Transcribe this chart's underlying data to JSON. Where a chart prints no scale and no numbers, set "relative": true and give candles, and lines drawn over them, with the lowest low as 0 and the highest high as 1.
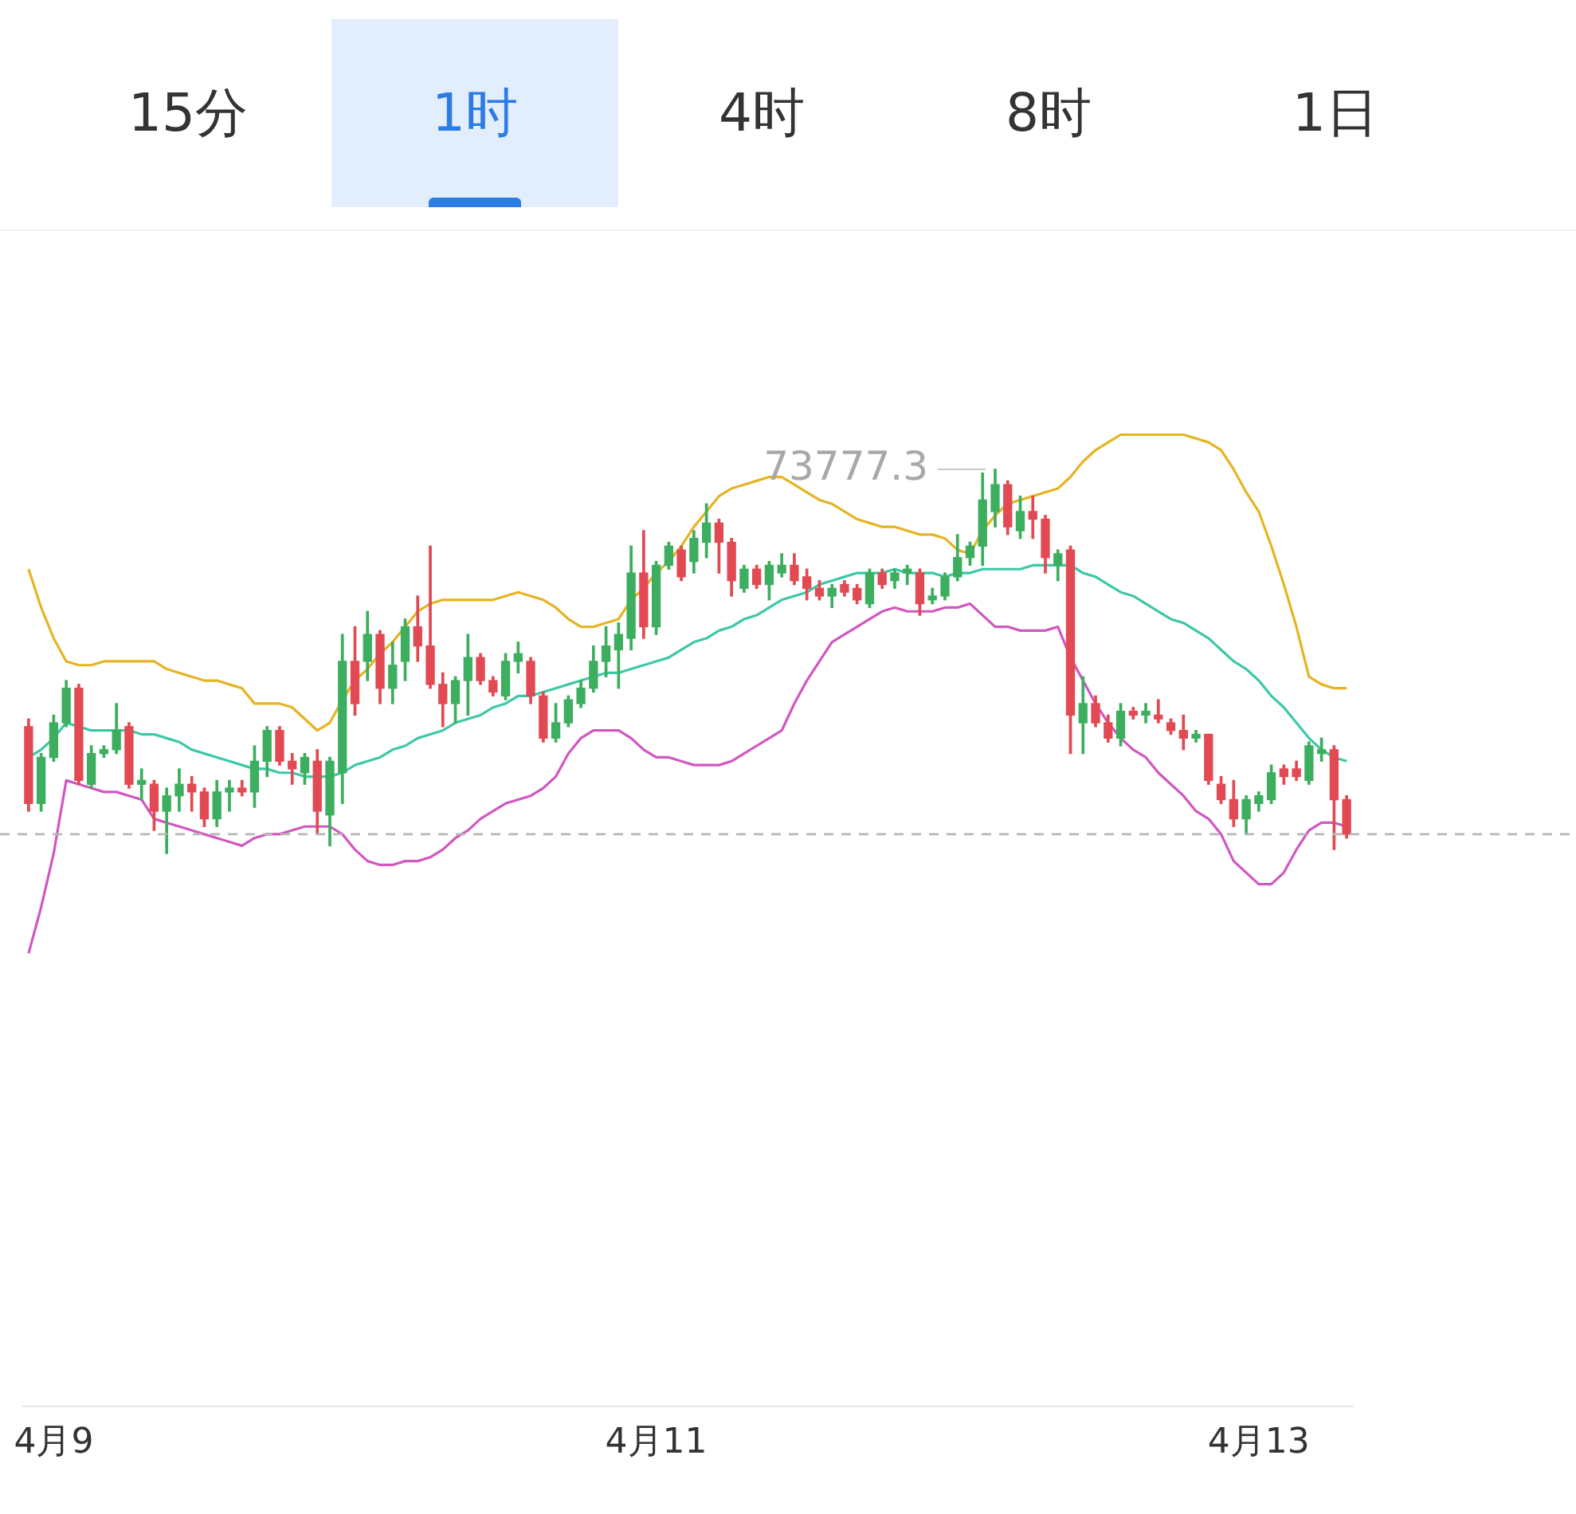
{
  "chart_data": {
    "type": "candlestick",
    "relative": true,
    "tick_labels": "x",
    "annotations": [
      "15分",
      "1时",
      "4时",
      "8时",
      "1日",
      "73777.3"
    ],
    "categories": [
      null,
      null,
      "4月9",
      null,
      null,
      null,
      null,
      null,
      null,
      null,
      null,
      null,
      null,
      null,
      null,
      null,
      null,
      null,
      null,
      null,
      null,
      null,
      null,
      null,
      null,
      null,
      null,
      null,
      null,
      null,
      null,
      null,
      null,
      null,
      null,
      null,
      null,
      null,
      null,
      null,
      null,
      null,
      null,
      null,
      null,
      null,
      null,
      null,
      null,
      null,
      "4月11",
      null,
      null,
      null,
      null,
      null,
      null,
      null,
      null,
      null,
      null,
      null,
      null,
      null,
      null,
      null,
      null,
      null,
      null,
      null,
      null,
      null,
      null,
      null,
      null,
      null,
      null,
      null,
      null,
      null,
      null,
      null,
      null,
      null,
      null,
      null,
      null,
      null,
      null,
      null,
      null,
      null,
      null,
      null,
      null,
      null,
      null,
      null,
      "4月13",
      null,
      null,
      null,
      null,
      null,
      null,
      null
    ],
    "ohlc": [
      [
        0.33,
        0.35,
        0.11,
        0.13
      ],
      [
        0.13,
        0.26,
        0.11,
        0.25
      ],
      [
        0.25,
        0.36,
        0.24,
        0.34
      ],
      [
        0.34,
        0.45,
        0.33,
        0.43
      ],
      [
        0.43,
        0.44,
        0.18,
        0.19
      ],
      [
        0.18,
        0.28,
        0.17,
        0.26
      ],
      [
        0.26,
        0.28,
        0.25,
        0.27
      ],
      [
        0.27,
        0.39,
        0.26,
        0.32
      ],
      [
        0.33,
        0.34,
        0.17,
        0.18
      ],
      [
        0.18,
        0.22,
        0.14,
        0.19
      ],
      [
        0.18,
        0.19,
        0.06,
        0.11
      ],
      [
        0.11,
        0.17,
        0,
        0.15
      ],
      [
        0.15,
        0.22,
        0.11,
        0.18
      ],
      [
        0.18,
        0.2,
        0.11,
        0.16
      ],
      [
        0.16,
        0.17,
        0.07,
        0.09
      ],
      [
        0.09,
        0.19,
        0.07,
        0.16
      ],
      [
        0.16,
        0.19,
        0.11,
        0.17
      ],
      [
        0.17,
        0.19,
        0.15,
        0.16
      ],
      [
        0.16,
        0.28,
        0.12,
        0.24
      ],
      [
        0.24,
        0.33,
        0.2,
        0.32
      ],
      [
        0.32,
        0.33,
        0.23,
        0.24
      ],
      [
        0.24,
        0.26,
        0.18,
        0.22
      ],
      [
        0.21,
        0.26,
        0.18,
        0.25
      ],
      [
        0.24,
        0.27,
        0.05,
        0.11
      ],
      [
        0.1,
        0.25,
        0.02,
        0.24
      ],
      [
        0.21,
        0.57,
        0.13,
        0.5
      ],
      [
        0.5,
        0.59,
        0.36,
        0.39
      ],
      [
        0.5,
        0.63,
        0.45,
        0.57
      ],
      [
        0.57,
        0.58,
        0.39,
        0.43
      ],
      [
        0.43,
        0.55,
        0.39,
        0.49
      ],
      [
        0.5,
        0.61,
        0.45,
        0.59
      ],
      [
        0.59,
        0.67,
        0.5,
        0.54
      ],
      [
        0.54,
        0.8,
        0.43,
        0.44
      ],
      [
        0.44,
        0.47,
        0.33,
        0.39
      ],
      [
        0.39,
        0.46,
        0.34,
        0.45
      ],
      [
        0.45,
        0.57,
        0.36,
        0.51
      ],
      [
        0.51,
        0.52,
        0.44,
        0.45
      ],
      [
        0.45,
        0.46,
        0.41,
        0.42
      ],
      [
        0.41,
        0.52,
        0.4,
        0.5
      ],
      [
        0.5,
        0.55,
        0.47,
        0.52
      ],
      [
        0.5,
        0.51,
        0.39,
        0.41
      ],
      [
        0.41,
        0.42,
        0.29,
        0.3
      ],
      [
        0.3,
        0.39,
        0.29,
        0.34
      ],
      [
        0.34,
        0.41,
        0.33,
        0.4
      ],
      [
        0.39,
        0.45,
        0.38,
        0.43
      ],
      [
        0.43,
        0.54,
        0.42,
        0.5
      ],
      [
        0.5,
        0.59,
        0.46,
        0.54
      ],
      [
        0.53,
        0.6,
        0.43,
        0.57
      ],
      [
        0.56,
        0.8,
        0.53,
        0.73
      ],
      [
        0.73,
        0.84,
        0.56,
        0.59
      ],
      [
        0.59,
        0.76,
        0.57,
        0.75
      ],
      [
        0.75,
        0.81,
        0.74,
        0.8
      ],
      [
        0.79,
        0.8,
        0.71,
        0.72
      ],
      [
        0.76,
        0.84,
        0.73,
        0.82
      ],
      [
        0.81,
        0.91,
        0.77,
        0.86
      ],
      [
        0.86,
        0.87,
        0.73,
        0.81
      ],
      [
        0.81,
        0.82,
        0.67,
        0.71
      ],
      [
        0.69,
        0.75,
        0.68,
        0.74
      ],
      [
        0.74,
        0.75,
        0.69,
        0.7
      ],
      [
        0.7,
        0.76,
        0.66,
        0.75
      ],
      [
        0.73,
        0.78,
        0.72,
        0.75
      ],
      [
        0.75,
        0.78,
        0.7,
        0.71
      ],
      [
        0.72,
        0.74,
        0.66,
        0.69
      ],
      [
        0.69,
        0.71,
        0.66,
        0.67
      ],
      [
        0.67,
        0.7,
        0.64,
        0.69
      ],
      [
        0.7,
        0.71,
        0.67,
        0.68
      ],
      [
        0.69,
        0.7,
        0.65,
        0.66
      ],
      [
        0.65,
        0.74,
        0.64,
        0.73
      ],
      [
        0.73,
        0.74,
        0.69,
        0.7
      ],
      [
        0.71,
        0.74,
        0.69,
        0.73
      ],
      [
        0.73,
        0.75,
        0.7,
        0.74
      ],
      [
        0.73,
        0.74,
        0.62,
        0.65
      ],
      [
        0.66,
        0.69,
        0.65,
        0.67
      ],
      [
        0.67,
        0.73,
        0.66,
        0.72
      ],
      [
        0.72,
        0.83,
        0.71,
        0.77
      ],
      [
        0.77,
        0.81,
        0.75,
        0.8
      ],
      [
        0.8,
        0.99,
        0.75,
        0.92
      ],
      [
        0.89,
        1,
        0.85,
        0.96
      ],
      [
        0.96,
        0.97,
        0.83,
        0.85
      ],
      [
        0.84,
        0.93,
        0.82,
        0.89
      ],
      [
        0.89,
        0.93,
        0.82,
        0.87
      ],
      [
        0.87,
        0.88,
        0.73,
        0.77
      ],
      [
        0.75,
        0.79,
        0.71,
        0.78
      ],
      [
        0.79,
        0.8,
        0.26,
        0.36
      ],
      [
        0.34,
        0.46,
        0.26,
        0.39
      ],
      [
        0.39,
        0.41,
        0.33,
        0.34
      ],
      [
        0.34,
        0.36,
        0.29,
        0.3
      ],
      [
        0.3,
        0.39,
        0.28,
        0.37
      ],
      [
        0.37,
        0.38,
        0.35,
        0.36
      ],
      [
        0.36,
        0.39,
        0.34,
        0.37
      ],
      [
        0.36,
        0.4,
        0.34,
        0.35
      ],
      [
        0.34,
        0.35,
        0.31,
        0.32
      ],
      [
        0.32,
        0.36,
        0.27,
        0.3
      ],
      [
        0.3,
        0.32,
        0.29,
        0.31
      ],
      [
        0.31,
        0.31,
        0.18,
        0.19
      ],
      [
        0.18,
        0.2,
        0.13,
        0.14
      ],
      [
        0.14,
        0.19,
        0.07,
        0.09
      ],
      [
        0.09,
        0.15,
        0.05,
        0.14
      ],
      [
        0.13,
        0.16,
        0.11,
        0.15
      ],
      [
        0.14,
        0.23,
        0.13,
        0.21
      ],
      [
        0.22,
        0.23,
        0.18,
        0.2
      ],
      [
        0.22,
        0.24,
        0.19,
        0.2
      ],
      [
        0.19,
        0.29,
        0.18,
        0.28
      ],
      [
        0.26,
        0.3,
        0.24,
        0.27
      ],
      [
        0.27,
        0.28,
        0.01,
        0.14
      ],
      [
        0.14,
        0.15,
        0.04,
        0.05
      ]
    ],
    "series": [
      {
        "type": "line",
        "color": "#e6b422",
        "values": [
          0.74,
          0.64,
          0.56,
          0.5,
          0.49,
          0.49,
          0.5,
          0.5,
          0.5,
          0.5,
          0.5,
          0.48,
          0.47,
          0.46,
          0.45,
          0.45,
          0.44,
          0.43,
          0.39,
          0.39,
          0.39,
          0.38,
          0.35,
          0.32,
          0.34,
          0.4,
          0.45,
          0.48,
          0.52,
          0.55,
          0.59,
          0.63,
          0.65,
          0.66,
          0.66,
          0.66,
          0.66,
          0.66,
          0.67,
          0.68,
          0.67,
          0.66,
          0.64,
          0.61,
          0.59,
          0.59,
          0.6,
          0.61,
          0.66,
          0.69,
          0.73,
          0.76,
          0.8,
          0.85,
          0.89,
          0.93,
          0.95,
          0.96,
          0.97,
          0.98,
          0.98,
          0.96,
          0.94,
          0.92,
          0.91,
          0.89,
          0.87,
          0.86,
          0.85,
          0.85,
          0.84,
          0.83,
          0.83,
          0.82,
          0.79,
          0.78,
          0.84,
          0.88,
          0.91,
          0.92,
          0.93,
          0.94,
          0.95,
          0.98,
          1.02,
          1.05,
          1.07,
          1.09,
          1.09,
          1.09,
          1.09,
          1.09,
          1.09,
          1.08,
          1.07,
          1.05,
          1.0,
          0.94,
          0.89,
          0.8,
          0.7,
          0.59,
          0.46,
          0.44,
          0.43,
          0.43
        ]
      },
      {
        "type": "line",
        "color": "#3cc8a8",
        "values": [
          0.25,
          0.27,
          0.3,
          0.34,
          0.33,
          0.32,
          0.32,
          0.32,
          0.32,
          0.31,
          0.31,
          0.3,
          0.29,
          0.27,
          0.26,
          0.25,
          0.24,
          0.23,
          0.22,
          0.22,
          0.21,
          0.21,
          0.2,
          0.2,
          0.2,
          0.21,
          0.23,
          0.24,
          0.25,
          0.27,
          0.28,
          0.3,
          0.31,
          0.32,
          0.34,
          0.35,
          0.36,
          0.38,
          0.39,
          0.41,
          0.41,
          0.42,
          0.43,
          0.44,
          0.45,
          0.46,
          0.47,
          0.47,
          0.48,
          0.49,
          0.5,
          0.51,
          0.53,
          0.55,
          0.56,
          0.58,
          0.59,
          0.61,
          0.62,
          0.64,
          0.66,
          0.67,
          0.68,
          0.7,
          0.71,
          0.72,
          0.73,
          0.73,
          0.73,
          0.74,
          0.73,
          0.73,
          0.73,
          0.72,
          0.73,
          0.73,
          0.74,
          0.74,
          0.74,
          0.74,
          0.75,
          0.75,
          0.75,
          0.75,
          0.73,
          0.72,
          0.7,
          0.68,
          0.67,
          0.65,
          0.63,
          0.61,
          0.6,
          0.58,
          0.56,
          0.53,
          0.5,
          0.48,
          0.45,
          0.41,
          0.38,
          0.34,
          0.3,
          0.27,
          0.25,
          0.24
        ]
      },
      {
        "type": "line",
        "color": "#d157c0",
        "values": [
          -0.26,
          -0.14,
          0.0,
          0.19,
          0.18,
          0.17,
          0.16,
          0.16,
          0.15,
          0.14,
          0.09,
          0.08,
          0.07,
          0.06,
          0.05,
          0.04,
          0.03,
          0.02,
          0.04,
          0.05,
          0.05,
          0.06,
          0.07,
          0.07,
          0.07,
          0.05,
          0.01,
          -0.02,
          -0.03,
          -0.03,
          -0.02,
          -0.02,
          -0.01,
          0.01,
          0.04,
          0.06,
          0.09,
          0.11,
          0.13,
          0.14,
          0.15,
          0.17,
          0.2,
          0.26,
          0.3,
          0.32,
          0.32,
          0.32,
          0.3,
          0.27,
          0.25,
          0.25,
          0.24,
          0.23,
          0.23,
          0.23,
          0.24,
          0.26,
          0.28,
          0.3,
          0.32,
          0.39,
          0.45,
          0.5,
          0.55,
          0.57,
          0.59,
          0.61,
          0.63,
          0.64,
          0.63,
          0.63,
          0.63,
          0.64,
          0.64,
          0.65,
          0.62,
          0.59,
          0.59,
          0.58,
          0.58,
          0.58,
          0.59,
          0.51,
          0.45,
          0.39,
          0.34,
          0.3,
          0.27,
          0.25,
          0.21,
          0.18,
          0.15,
          0.11,
          0.09,
          0.05,
          -0.02,
          -0.05,
          -0.08,
          -0.08,
          -0.05,
          0.01,
          0.06,
          0.08,
          0.08,
          0.07
        ]
      }
    ],
    "ref_lines": [
      {
        "axis": "y",
        "value": 0.05,
        "color": "#b8b8b8",
        "line_style": "dashed"
      }
    ]
  }
}
